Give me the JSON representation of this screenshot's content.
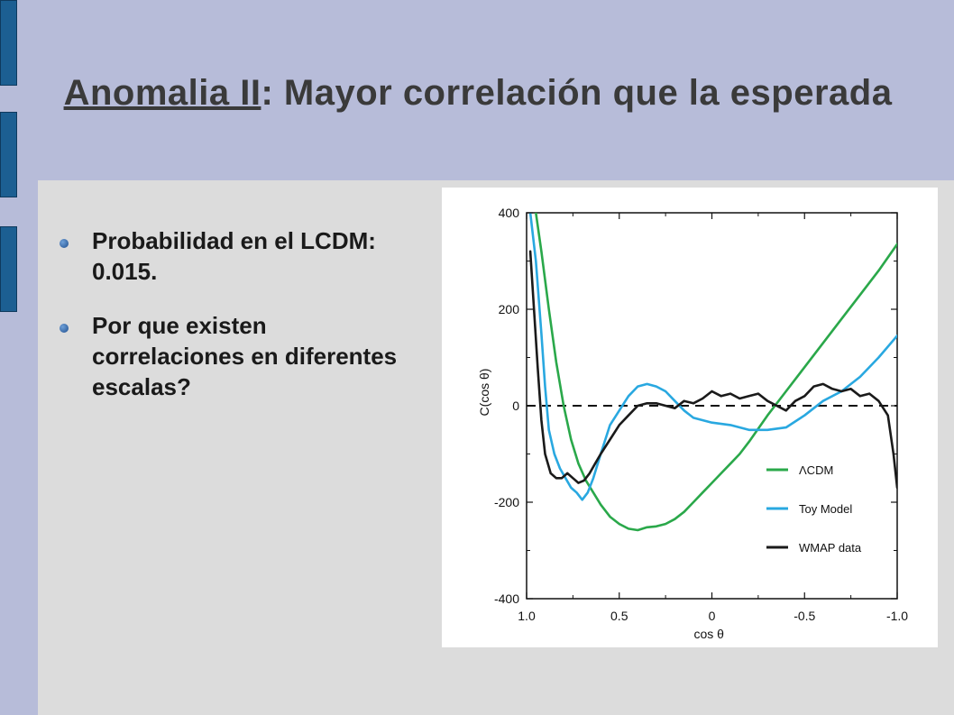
{
  "slide": {
    "title_underlined": "Anomalia II",
    "title_rest": ": Mayor correlación que la esperada",
    "bullets": [
      "Probabilidad en el LCDM: 0.015.",
      "Por que existen correlaciones en diferentes escalas?"
    ]
  },
  "colors": {
    "header_bg": "#b7bcd9",
    "body_bg": "#dcdcdc",
    "deco_bar": "#1c5f92",
    "lcdm": "#2aa84a",
    "toy": "#29a8e0",
    "wmap": "#1a1a1a"
  },
  "chart_data": {
    "type": "line",
    "xlabel": "cos θ",
    "ylabel": "C(cos θ)",
    "xlim": [
      1.0,
      -1.0
    ],
    "ylim": [
      -400,
      400
    ],
    "x_ticks": [
      "1.0",
      "0.5",
      "0",
      "-0.5",
      "-1.0"
    ],
    "x_tick_values": [
      1.0,
      0.5,
      0,
      -0.5,
      -1.0
    ],
    "y_ticks": [
      "400",
      "200",
      "0",
      "-200",
      "-400"
    ],
    "y_tick_values": [
      400,
      200,
      0,
      -200,
      -400
    ],
    "legend_position": "lower-right",
    "zero_line_dashed": true,
    "series": [
      {
        "name": "ΛCDM",
        "color": "#2aa84a",
        "x": [
          0.95,
          0.92,
          0.88,
          0.84,
          0.8,
          0.76,
          0.72,
          0.68,
          0.64,
          0.6,
          0.55,
          0.5,
          0.45,
          0.4,
          0.35,
          0.3,
          0.25,
          0.2,
          0.15,
          0.1,
          0.05,
          0.0,
          -0.05,
          -0.1,
          -0.15,
          -0.2,
          -0.3,
          -0.4,
          -0.5,
          -0.6,
          -0.7,
          -0.8,
          -0.9,
          -1.0
        ],
        "y": [
          400,
          320,
          200,
          90,
          0,
          -70,
          -120,
          -155,
          -180,
          -205,
          -230,
          -245,
          -255,
          -258,
          -252,
          -250,
          -245,
          -235,
          -220,
          -200,
          -180,
          -160,
          -140,
          -120,
          -100,
          -75,
          -20,
          30,
          80,
          130,
          180,
          230,
          280,
          335
        ]
      },
      {
        "name": "Toy Model",
        "color": "#29a8e0",
        "x": [
          0.98,
          0.95,
          0.92,
          0.9,
          0.88,
          0.85,
          0.82,
          0.79,
          0.76,
          0.73,
          0.7,
          0.67,
          0.64,
          0.6,
          0.55,
          0.5,
          0.45,
          0.4,
          0.35,
          0.3,
          0.25,
          0.2,
          0.15,
          0.1,
          0.0,
          -0.1,
          -0.2,
          -0.3,
          -0.4,
          -0.5,
          -0.6,
          -0.7,
          -0.8,
          -0.9,
          -1.0
        ],
        "y": [
          400,
          300,
          150,
          40,
          -50,
          -100,
          -130,
          -150,
          -170,
          -180,
          -195,
          -180,
          -150,
          -100,
          -40,
          -10,
          20,
          40,
          45,
          40,
          30,
          10,
          -10,
          -25,
          -35,
          -40,
          -50,
          -50,
          -45,
          -20,
          10,
          30,
          60,
          100,
          145
        ]
      },
      {
        "name": "WMAP data",
        "color": "#1a1a1a",
        "x": [
          0.98,
          0.96,
          0.94,
          0.92,
          0.9,
          0.87,
          0.84,
          0.81,
          0.78,
          0.75,
          0.72,
          0.69,
          0.66,
          0.63,
          0.6,
          0.55,
          0.5,
          0.45,
          0.4,
          0.35,
          0.3,
          0.25,
          0.2,
          0.15,
          0.1,
          0.05,
          0.0,
          -0.05,
          -0.1,
          -0.15,
          -0.2,
          -0.25,
          -0.3,
          -0.35,
          -0.4,
          -0.45,
          -0.5,
          -0.55,
          -0.6,
          -0.65,
          -0.7,
          -0.75,
          -0.8,
          -0.85,
          -0.9,
          -0.95,
          -0.98,
          -1.0
        ],
        "y": [
          320,
          200,
          80,
          -30,
          -100,
          -140,
          -150,
          -150,
          -140,
          -150,
          -160,
          -155,
          -140,
          -120,
          -100,
          -70,
          -40,
          -20,
          0,
          5,
          5,
          0,
          -5,
          10,
          5,
          15,
          30,
          20,
          25,
          15,
          20,
          25,
          10,
          0,
          -10,
          10,
          20,
          40,
          45,
          35,
          30,
          35,
          20,
          25,
          10,
          -20,
          -100,
          -170
        ]
      }
    ]
  }
}
